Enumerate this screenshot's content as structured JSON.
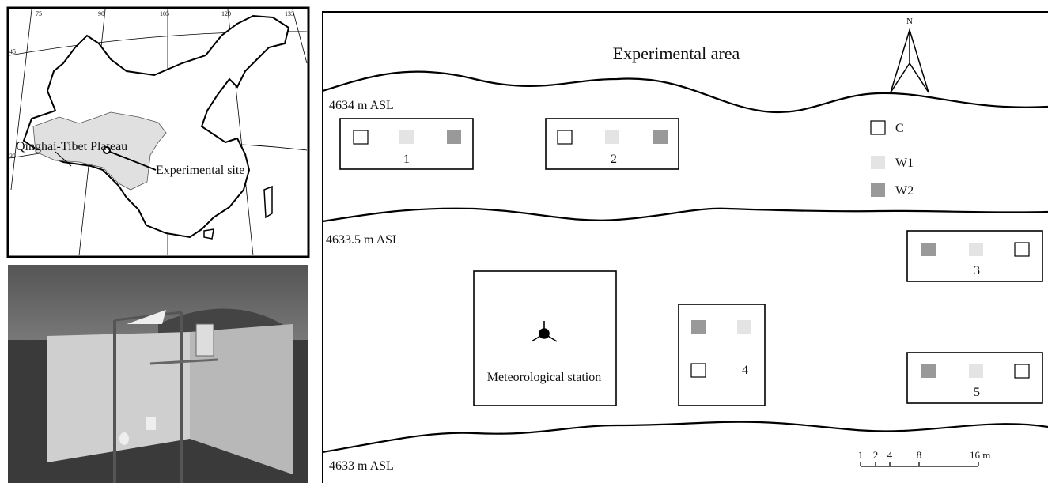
{
  "map": {
    "lon_labels": [
      "75",
      "90",
      "105",
      "120",
      "135"
    ],
    "lat_labels": [
      "45",
      "30"
    ],
    "region_label": "Qinghai-Tibet Plateau",
    "site_label": "Experimental site"
  },
  "layout": {
    "title": "Experimental area",
    "north": "N",
    "elevations": [
      "4634 m ASL",
      "4633.5 m ASL",
      "4633 m ASL"
    ],
    "plots": [
      "1",
      "2",
      "3",
      "4",
      "5"
    ],
    "station": "Meteorological station",
    "legend": [
      "C",
      "W1",
      "W2"
    ],
    "scale_bar": [
      "1",
      "2",
      "4",
      "8",
      "16 m"
    ]
  }
}
